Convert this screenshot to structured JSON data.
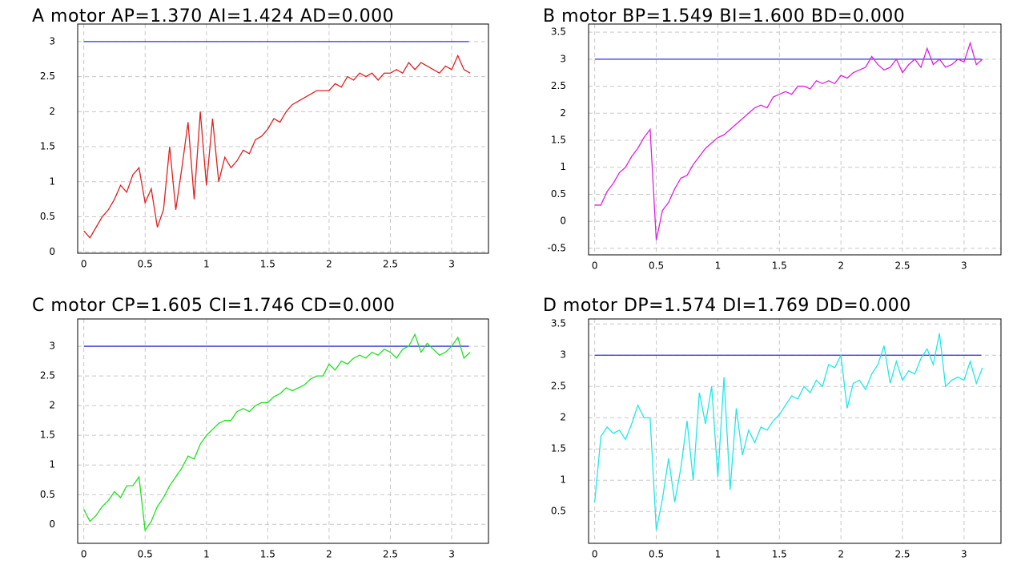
{
  "chart_data": [
    {
      "type": "line",
      "title": "A  motor AP=1.370 AI=1.424  AD=0.000",
      "xlim": [
        -0.05,
        3.3
      ],
      "ylim": [
        -0.02,
        3.25
      ],
      "xticks": [
        0,
        0.5,
        1,
        1.5,
        2,
        2.5,
        3
      ],
      "yticks": [
        0,
        0.5,
        1,
        1.5,
        2,
        2.5,
        3
      ],
      "grid": true,
      "series": [
        {
          "color": "#3030e0",
          "x": [
            0,
            3.14
          ],
          "values": [
            3,
            3
          ]
        },
        {
          "color": "#e02020",
          "x": [
            0,
            0.05,
            0.1,
            0.15,
            0.2,
            0.25,
            0.3,
            0.35,
            0.4,
            0.45,
            0.5,
            0.55,
            0.6,
            0.65,
            0.7,
            0.75,
            0.8,
            0.85,
            0.9,
            0.95,
            1,
            1.05,
            1.1,
            1.15,
            1.2,
            1.25,
            1.3,
            1.35,
            1.4,
            1.45,
            1.5,
            1.55,
            1.6,
            1.65,
            1.7,
            1.75,
            1.8,
            1.85,
            1.9,
            1.95,
            2,
            2.05,
            2.1,
            2.15,
            2.2,
            2.25,
            2.3,
            2.35,
            2.4,
            2.45,
            2.5,
            2.55,
            2.6,
            2.65,
            2.7,
            2.75,
            2.8,
            2.85,
            2.9,
            2.95,
            3,
            3.05,
            3.1,
            3.15
          ],
          "values": [
            0.3,
            0.2,
            0.35,
            0.5,
            0.6,
            0.75,
            0.95,
            0.85,
            1.1,
            1.2,
            0.7,
            0.9,
            0.35,
            0.6,
            1.5,
            0.6,
            1.2,
            1.85,
            0.75,
            2.0,
            0.95,
            1.9,
            1.0,
            1.35,
            1.2,
            1.3,
            1.45,
            1.4,
            1.6,
            1.65,
            1.75,
            1.9,
            1.85,
            2.0,
            2.1,
            2.15,
            2.2,
            2.25,
            2.3,
            2.3,
            2.3,
            2.4,
            2.35,
            2.5,
            2.45,
            2.55,
            2.5,
            2.55,
            2.45,
            2.55,
            2.55,
            2.6,
            2.55,
            2.7,
            2.6,
            2.7,
            2.65,
            2.6,
            2.55,
            2.65,
            2.6,
            2.8,
            2.6,
            2.55
          ]
        }
      ]
    },
    {
      "type": "line",
      "title": "B  motor BP=1.549 BI=1.600  BD=0.000",
      "xlim": [
        -0.05,
        3.3
      ],
      "ylim": [
        -0.62,
        3.65
      ],
      "xticks": [
        0,
        0.5,
        1,
        1.5,
        2,
        2.5,
        3
      ],
      "yticks": [
        -0.5,
        0,
        0.5,
        1,
        1.5,
        2,
        2.5,
        3,
        3.5
      ],
      "grid": true,
      "series": [
        {
          "color": "#3030e0",
          "x": [
            0,
            3.14
          ],
          "values": [
            3,
            3
          ]
        },
        {
          "color": "#e020e0",
          "x": [
            0,
            0.05,
            0.1,
            0.15,
            0.2,
            0.25,
            0.3,
            0.35,
            0.4,
            0.45,
            0.5,
            0.55,
            0.6,
            0.65,
            0.7,
            0.75,
            0.8,
            0.85,
            0.9,
            0.95,
            1,
            1.05,
            1.1,
            1.15,
            1.2,
            1.25,
            1.3,
            1.35,
            1.4,
            1.45,
            1.5,
            1.55,
            1.6,
            1.65,
            1.7,
            1.75,
            1.8,
            1.85,
            1.9,
            1.95,
            2,
            2.05,
            2.1,
            2.15,
            2.2,
            2.25,
            2.3,
            2.35,
            2.4,
            2.45,
            2.5,
            2.55,
            2.6,
            2.65,
            2.7,
            2.75,
            2.8,
            2.85,
            2.9,
            2.95,
            3,
            3.05,
            3.1,
            3.15
          ],
          "values": [
            0.3,
            0.3,
            0.55,
            0.7,
            0.9,
            1.0,
            1.2,
            1.35,
            1.55,
            1.7,
            -0.35,
            0.2,
            0.35,
            0.6,
            0.8,
            0.85,
            1.05,
            1.2,
            1.35,
            1.45,
            1.55,
            1.6,
            1.7,
            1.8,
            1.9,
            2.0,
            2.1,
            2.15,
            2.1,
            2.3,
            2.35,
            2.4,
            2.35,
            2.5,
            2.5,
            2.45,
            2.6,
            2.55,
            2.6,
            2.55,
            2.7,
            2.65,
            2.75,
            2.8,
            2.85,
            3.05,
            2.9,
            2.8,
            2.85,
            3.0,
            2.75,
            2.9,
            3.0,
            2.85,
            3.2,
            2.9,
            3.0,
            2.85,
            2.9,
            3.0,
            2.95,
            3.3,
            2.9,
            3.0
          ]
        }
      ]
    },
    {
      "type": "line",
      "title": "C  motor CP=1.605 CI=1.746  CD=0.000",
      "xlim": [
        -0.05,
        3.3
      ],
      "ylim": [
        -0.32,
        3.46
      ],
      "xticks": [
        0,
        0.5,
        1,
        1.5,
        2,
        2.5,
        3
      ],
      "yticks": [
        0,
        0.5,
        1,
        1.5,
        2,
        2.5,
        3
      ],
      "grid": true,
      "series": [
        {
          "color": "#3030e0",
          "x": [
            0,
            3.14
          ],
          "values": [
            3,
            3
          ]
        },
        {
          "color": "#20e020",
          "x": [
            0,
            0.05,
            0.1,
            0.15,
            0.2,
            0.25,
            0.3,
            0.35,
            0.4,
            0.45,
            0.5,
            0.55,
            0.6,
            0.65,
            0.7,
            0.75,
            0.8,
            0.85,
            0.9,
            0.95,
            1,
            1.05,
            1.1,
            1.15,
            1.2,
            1.25,
            1.3,
            1.35,
            1.4,
            1.45,
            1.5,
            1.55,
            1.6,
            1.65,
            1.7,
            1.75,
            1.8,
            1.85,
            1.9,
            1.95,
            2,
            2.05,
            2.1,
            2.15,
            2.2,
            2.25,
            2.3,
            2.35,
            2.4,
            2.45,
            2.5,
            2.55,
            2.6,
            2.65,
            2.7,
            2.75,
            2.8,
            2.85,
            2.9,
            2.95,
            3,
            3.05,
            3.1,
            3.15
          ],
          "values": [
            0.25,
            0.05,
            0.15,
            0.3,
            0.4,
            0.55,
            0.45,
            0.65,
            0.65,
            0.8,
            -0.1,
            0.05,
            0.3,
            0.45,
            0.65,
            0.8,
            0.95,
            1.15,
            1.1,
            1.35,
            1.5,
            1.6,
            1.7,
            1.75,
            1.75,
            1.9,
            1.95,
            1.9,
            2.0,
            2.05,
            2.05,
            2.15,
            2.2,
            2.3,
            2.25,
            2.3,
            2.35,
            2.45,
            2.5,
            2.5,
            2.7,
            2.6,
            2.75,
            2.7,
            2.8,
            2.85,
            2.8,
            2.9,
            2.85,
            2.95,
            2.9,
            2.8,
            2.95,
            3.0,
            3.2,
            2.9,
            3.05,
            2.95,
            2.85,
            2.9,
            3.0,
            3.15,
            2.8,
            2.9
          ]
        }
      ]
    },
    {
      "type": "line",
      "title": "D  motor DP=1.574 DI=1.769  DD=0.000",
      "xlim": [
        -0.05,
        3.3
      ],
      "ylim": [
        -0.01,
        3.58
      ],
      "xticks": [
        0,
        0.5,
        1,
        1.5,
        2,
        2.5,
        3
      ],
      "yticks": [
        0.5,
        1,
        1.5,
        2,
        2.5,
        3,
        3.5
      ],
      "grid": true,
      "series": [
        {
          "color": "#3030e0",
          "x": [
            0,
            3.14
          ],
          "values": [
            3,
            3
          ]
        },
        {
          "color": "#20e8e8",
          "x": [
            0,
            0.05,
            0.1,
            0.15,
            0.2,
            0.25,
            0.3,
            0.35,
            0.4,
            0.45,
            0.5,
            0.55,
            0.6,
            0.65,
            0.7,
            0.75,
            0.8,
            0.85,
            0.9,
            0.95,
            1,
            1.05,
            1.1,
            1.15,
            1.2,
            1.25,
            1.3,
            1.35,
            1.4,
            1.45,
            1.5,
            1.55,
            1.6,
            1.65,
            1.7,
            1.75,
            1.8,
            1.85,
            1.9,
            1.95,
            2,
            2.05,
            2.1,
            2.15,
            2.2,
            2.25,
            2.3,
            2.35,
            2.4,
            2.45,
            2.5,
            2.55,
            2.6,
            2.65,
            2.7,
            2.75,
            2.8,
            2.85,
            2.9,
            2.95,
            3,
            3.05,
            3.1,
            3.15
          ],
          "values": [
            0.65,
            1.7,
            1.85,
            1.75,
            1.8,
            1.65,
            1.9,
            2.2,
            2.0,
            2.0,
            0.2,
            0.7,
            1.35,
            0.65,
            1.2,
            1.95,
            1.0,
            2.4,
            1.9,
            2.5,
            1.05,
            2.65,
            0.85,
            2.15,
            1.4,
            1.8,
            1.6,
            1.85,
            1.8,
            1.95,
            2.05,
            2.2,
            2.35,
            2.3,
            2.5,
            2.4,
            2.6,
            2.5,
            2.85,
            2.8,
            3.0,
            2.15,
            2.55,
            2.6,
            2.45,
            2.7,
            2.85,
            3.15,
            2.55,
            2.9,
            2.6,
            2.75,
            2.7,
            2.95,
            3.1,
            2.85,
            3.35,
            2.5,
            2.6,
            2.65,
            2.6,
            2.9,
            2.55,
            2.8
          ]
        }
      ]
    }
  ]
}
